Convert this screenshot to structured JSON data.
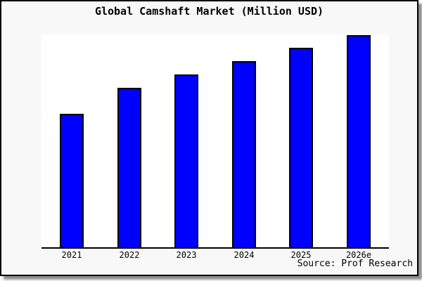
{
  "title": "Global Camshaft Market (Million USD)",
  "source_note": "Source: Prof Research",
  "figure": {
    "background": "#f8f8f8",
    "plot_background": "#ffffff",
    "border_color": "#000000",
    "shadow_color": "#999999"
  },
  "chart_data": {
    "type": "bar",
    "title": "Global Camshaft Market (Million USD)",
    "categories": [
      "2021",
      "2022",
      "2023",
      "2024",
      "2025",
      "2026e"
    ],
    "values": [
      62.9,
      75.2,
      81.5,
      87.7,
      94.0,
      100
    ],
    "value_scale": "relative; no y-axis ticks or gridlines shown, tallest bar (2026e) = 100",
    "xlabel": "",
    "ylabel": "",
    "grid": false,
    "legend": false,
    "bar_color": "#0000ff",
    "bar_edge_color": "#000000",
    "axis_line_color": "#000000"
  }
}
